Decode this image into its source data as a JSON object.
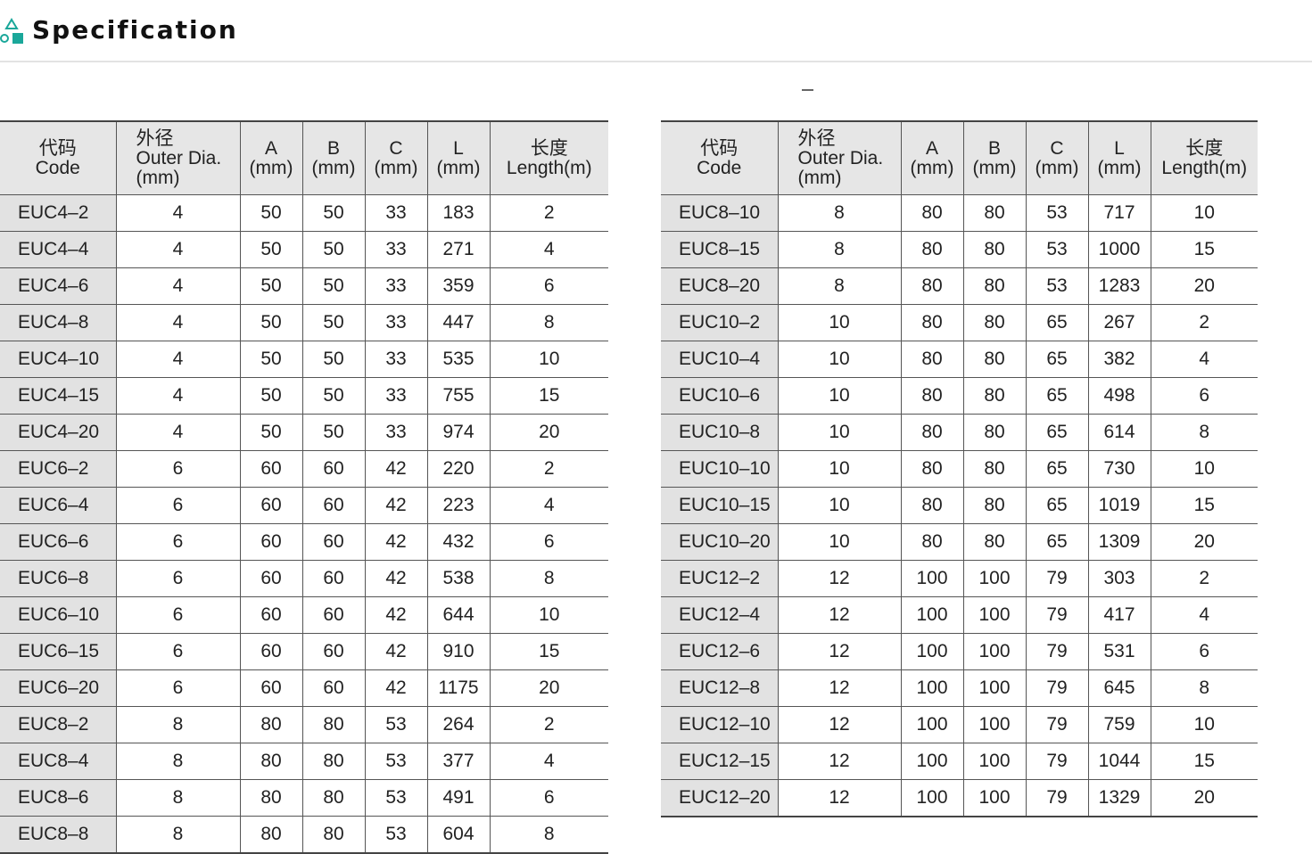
{
  "header": {
    "title": "Specification",
    "accent_color": "#1aa79a",
    "icon": "shapes-icon"
  },
  "columns": [
    {
      "zh": "代码",
      "en": "Code"
    },
    {
      "zh": "外径",
      "en": "Outer Dia.",
      "unit": "(mm)"
    },
    {
      "en": "A",
      "unit": "(mm)"
    },
    {
      "en": "B",
      "unit": "(mm)"
    },
    {
      "en": "C",
      "unit": "(mm)"
    },
    {
      "en": "L",
      "unit": "(mm)"
    },
    {
      "zh": "长度",
      "en": "Length(m)"
    }
  ],
  "left_table": [
    [
      "EUC4–2",
      "4",
      "50",
      "50",
      "33",
      "183",
      "2"
    ],
    [
      "EUC4–4",
      "4",
      "50",
      "50",
      "33",
      "271",
      "4"
    ],
    [
      "EUC4–6",
      "4",
      "50",
      "50",
      "33",
      "359",
      "6"
    ],
    [
      "EUC4–8",
      "4",
      "50",
      "50",
      "33",
      "447",
      "8"
    ],
    [
      "EUC4–10",
      "4",
      "50",
      "50",
      "33",
      "535",
      "10"
    ],
    [
      "EUC4–15",
      "4",
      "50",
      "50",
      "33",
      "755",
      "15"
    ],
    [
      "EUC4–20",
      "4",
      "50",
      "50",
      "33",
      "974",
      "20"
    ],
    [
      "EUC6–2",
      "6",
      "60",
      "60",
      "42",
      "220",
      "2"
    ],
    [
      "EUC6–4",
      "6",
      "60",
      "60",
      "42",
      "223",
      "4"
    ],
    [
      "EUC6–6",
      "6",
      "60",
      "60",
      "42",
      "432",
      "6"
    ],
    [
      "EUC6–8",
      "6",
      "60",
      "60",
      "42",
      "538",
      "8"
    ],
    [
      "EUC6–10",
      "6",
      "60",
      "60",
      "42",
      "644",
      "10"
    ],
    [
      "EUC6–15",
      "6",
      "60",
      "60",
      "42",
      "910",
      "15"
    ],
    [
      "EUC6–20",
      "6",
      "60",
      "60",
      "42",
      "1175",
      "20"
    ],
    [
      "EUC8–2",
      "8",
      "80",
      "80",
      "53",
      "264",
      "2"
    ],
    [
      "EUC8–4",
      "8",
      "80",
      "80",
      "53",
      "377",
      "4"
    ],
    [
      "EUC8–6",
      "8",
      "80",
      "80",
      "53",
      "491",
      "6"
    ],
    [
      "EUC8–8",
      "8",
      "80",
      "80",
      "53",
      "604",
      "8"
    ]
  ],
  "right_table": [
    [
      "EUC8–10",
      "8",
      "80",
      "80",
      "53",
      "717",
      "10"
    ],
    [
      "EUC8–15",
      "8",
      "80",
      "80",
      "53",
      "1000",
      "15"
    ],
    [
      "EUC8–20",
      "8",
      "80",
      "80",
      "53",
      "1283",
      "20"
    ],
    [
      "EUC10–2",
      "10",
      "80",
      "80",
      "65",
      "267",
      "2"
    ],
    [
      "EUC10–4",
      "10",
      "80",
      "80",
      "65",
      "382",
      "4"
    ],
    [
      "EUC10–6",
      "10",
      "80",
      "80",
      "65",
      "498",
      "6"
    ],
    [
      "EUC10–8",
      "10",
      "80",
      "80",
      "65",
      "614",
      "8"
    ],
    [
      "EUC10–10",
      "10",
      "80",
      "80",
      "65",
      "730",
      "10"
    ],
    [
      "EUC10–15",
      "10",
      "80",
      "80",
      "65",
      "1019",
      "15"
    ],
    [
      "EUC10–20",
      "10",
      "80",
      "80",
      "65",
      "1309",
      "20"
    ],
    [
      "EUC12–2",
      "12",
      "100",
      "100",
      "79",
      "303",
      "2"
    ],
    [
      "EUC12–4",
      "12",
      "100",
      "100",
      "79",
      "417",
      "4"
    ],
    [
      "EUC12–6",
      "12",
      "100",
      "100",
      "79",
      "531",
      "6"
    ],
    [
      "EUC12–8",
      "12",
      "100",
      "100",
      "79",
      "645",
      "8"
    ],
    [
      "EUC12–10",
      "12",
      "100",
      "100",
      "79",
      "759",
      "10"
    ],
    [
      "EUC12–15",
      "12",
      "100",
      "100",
      "79",
      "1044",
      "15"
    ],
    [
      "EUC12–20",
      "12",
      "100",
      "100",
      "79",
      "1329",
      "20"
    ]
  ]
}
